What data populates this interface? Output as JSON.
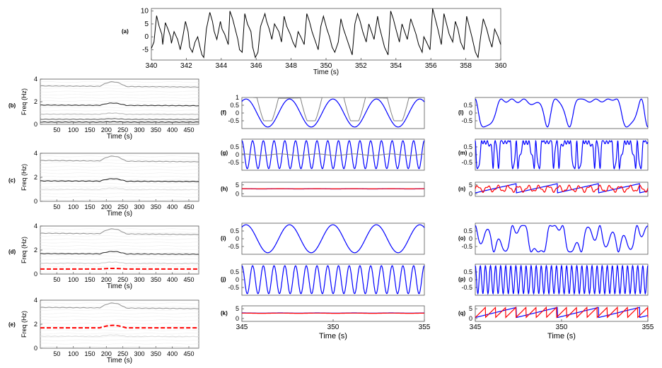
{
  "chart_data": [
    {
      "id": "a",
      "type": "line",
      "label": "(a)",
      "xlabel": "Time (s)",
      "ylabel": "",
      "xlim": [
        340,
        360
      ],
      "ylim": [
        -9,
        11
      ],
      "xticks": [
        340,
        342,
        344,
        346,
        348,
        350,
        352,
        354,
        356,
        358,
        360
      ],
      "yticks": [
        -5,
        0,
        5,
        10
      ],
      "series": [
        {
          "color": "#000000",
          "x": [
            340,
            340.15,
            340.3,
            340.45,
            340.6,
            340.65,
            340.8,
            340.95,
            341.1,
            341.15,
            341.3,
            341.5,
            341.65,
            341.8,
            341.95,
            342.1,
            342.2,
            342.35,
            342.5,
            342.65,
            342.8,
            342.9,
            343,
            343.15,
            343.35,
            343.5,
            343.6,
            343.75,
            343.95,
            344.05,
            344.2,
            344.4,
            344.5,
            344.65,
            344.8,
            344.95,
            345.05,
            345.2,
            345.35,
            345.5,
            345.7,
            345.8,
            345.95,
            346.1,
            346.25,
            346.5,
            346.6,
            346.75,
            346.9,
            347.05,
            347.3,
            347.45,
            347.6,
            347.75,
            347.95,
            348.1,
            348.25,
            348.4,
            348.55,
            348.75,
            348.9,
            349.05,
            349.2,
            349.4,
            349.55,
            349.7,
            349.85,
            350.05,
            350.2,
            350.35,
            350.5,
            350.7,
            350.85,
            351,
            351.15,
            351.35,
            351.5,
            351.65,
            351.8,
            351.95,
            352.1,
            352.3,
            352.45,
            352.6,
            352.75,
            352.95,
            353.05,
            353.2,
            353.35,
            353.55,
            353.7,
            353.85,
            354,
            354.2,
            354.35,
            354.5,
            354.65,
            354.85,
            355,
            355.15,
            355.3,
            355.5,
            355.6,
            355.75,
            355.95,
            356.1,
            356.25,
            356.4,
            356.6,
            356.75,
            356.9,
            357.05,
            357.25,
            357.4,
            357.55,
            357.7,
            357.9,
            358.05,
            358.2,
            358.35,
            358.55,
            358.7,
            358.85,
            359,
            359.2,
            359.35,
            359.5,
            359.65,
            359.85,
            360
          ],
          "y": [
            -4.5,
            -2,
            8.2,
            4,
            1,
            -3,
            5.5,
            3,
            0,
            -2.5,
            2,
            -1,
            -5,
            0,
            6,
            2,
            -4,
            -6,
            -2,
            0,
            -4.5,
            -7,
            -8,
            3,
            9.5,
            6,
            2,
            -1,
            6,
            3,
            1,
            -3,
            10,
            7,
            3,
            -1,
            -5,
            -6,
            9,
            5,
            2,
            -4,
            -8,
            -6,
            4,
            9,
            6,
            3,
            -1,
            5,
            2,
            -2,
            8,
            4,
            1,
            -2,
            -4,
            2,
            0,
            -3,
            9,
            6,
            2,
            -2,
            -5,
            4,
            8,
            3,
            0,
            -4,
            -6,
            -2,
            7,
            3,
            0,
            -4,
            -7,
            5,
            9,
            6,
            2,
            -2,
            5,
            2,
            -1,
            8,
            4,
            0,
            -4,
            -7,
            10,
            7,
            3,
            -2,
            5,
            2,
            -1,
            7,
            4,
            1,
            -3,
            -6,
            0,
            -2,
            -5,
            11,
            7,
            3,
            -3,
            9,
            5,
            1,
            -2,
            6,
            3,
            -2,
            -5,
            8,
            4,
            0,
            -6,
            -8,
            0,
            7,
            3,
            -1,
            -4,
            3,
            0,
            -3
          ]
        }
      ]
    },
    {
      "id": "b",
      "type": "heatmap",
      "label": "(b)",
      "ylabel": "Freq (Hz)",
      "xlabel": "Time (s)",
      "xlim": [
        0,
        480
      ],
      "ylim": [
        0,
        4
      ],
      "xticks": [
        50,
        100,
        150,
        200,
        250,
        300,
        350,
        400,
        450
      ],
      "yticks": [
        0,
        2,
        4
      ],
      "ridges": [
        {
          "freq": 3.4,
          "shade": "#999999"
        },
        {
          "freq": 1.7,
          "shade": "#333333"
        },
        {
          "freq": 0.9,
          "shade": "#bbbbbb"
        },
        {
          "freq": 0.45,
          "shade": "#666666"
        },
        {
          "freq": 0.2,
          "shade": "#222222"
        }
      ],
      "overlay": null
    },
    {
      "id": "c",
      "type": "heatmap",
      "label": "(c)",
      "ylabel": "Freq (Hz)",
      "xlabel": "Time (s)",
      "xlim": [
        0,
        480
      ],
      "ylim": [
        0,
        4
      ],
      "xticks": [
        50,
        100,
        150,
        200,
        250,
        300,
        350,
        400,
        450
      ],
      "yticks": [
        0,
        2,
        4
      ],
      "ridges": [
        {
          "freq": 3.4,
          "shade": "#999999"
        },
        {
          "freq": 1.7,
          "shade": "#222222"
        },
        {
          "freq": 1.0,
          "shade": "#dddddd"
        }
      ],
      "overlay": null
    },
    {
      "id": "d",
      "type": "heatmap",
      "label": "(d)",
      "ylabel": "Freq (Hz)",
      "xlabel": "Time (s)",
      "xlim": [
        0,
        480
      ],
      "ylim": [
        0,
        4
      ],
      "xticks": [
        50,
        100,
        150,
        200,
        250,
        300,
        350,
        400,
        450
      ],
      "yticks": [
        0,
        2,
        4
      ],
      "ridges": [
        {
          "freq": 3.4,
          "shade": "#999999"
        },
        {
          "freq": 1.7,
          "shade": "#333333"
        },
        {
          "freq": 0.9,
          "shade": "#cccccc"
        }
      ],
      "overlay": {
        "freq": 0.42,
        "color": "#ff0000"
      }
    },
    {
      "id": "e",
      "type": "heatmap",
      "label": "(e)",
      "ylabel": "Freq (Hz)",
      "xlabel": "Time (s)",
      "xlim": [
        0,
        480
      ],
      "ylim": [
        0,
        4
      ],
      "xticks": [
        50,
        100,
        150,
        200,
        250,
        300,
        350,
        400,
        450
      ],
      "yticks": [
        0,
        2,
        4
      ],
      "ridges": [
        {
          "freq": 3.4,
          "shade": "#999999"
        },
        {
          "freq": 1.0,
          "shade": "#dddddd"
        }
      ],
      "overlay": {
        "freq": 1.7,
        "color": "#ff0000"
      }
    },
    {
      "id": "f",
      "type": "line",
      "label": "(f)",
      "xlim": [
        345,
        355
      ],
      "ylim": [
        -1,
        1
      ],
      "yticks": [
        -0.5,
        0,
        0.5,
        1
      ],
      "series": [
        {
          "name": "",
          "color": "#0000ff",
          "kind": "cos",
          "freq": 0.42,
          "phase": -0.6
        },
        {
          "name": "",
          "color": "#808080",
          "kind": "amplitude",
          "freq": 0.42,
          "phase": -0.6
        }
      ]
    },
    {
      "id": "g",
      "type": "line",
      "label": "(g)",
      "xlim": [
        345,
        355
      ],
      "ylim": [
        -1,
        1
      ],
      "yticks": [
        -0.5,
        0,
        0.5
      ],
      "series": [
        {
          "name": "",
          "color": "#0000ff",
          "kind": "cos",
          "freq": 1.7,
          "phase": 0
        },
        {
          "name": "",
          "color": "#808080",
          "kind": "flat",
          "value": 0
        }
      ]
    },
    {
      "id": "h",
      "type": "line",
      "label": "(h)",
      "xlim": [
        345,
        355
      ],
      "ylim": [
        -1.5,
        6.5
      ],
      "yticks": [
        0,
        5
      ],
      "series": [
        {
          "name": "",
          "color": "#0000ff",
          "kind": "flat",
          "value": 2.75
        },
        {
          "name": "",
          "color": "#ff0000",
          "kind": "flat",
          "value": 2.8
        }
      ]
    },
    {
      "id": "i",
      "type": "line",
      "label": "(i)",
      "xlim": [
        345,
        355
      ],
      "ylim": [
        -1,
        1
      ],
      "yticks": [
        -0.5,
        0,
        0.5
      ],
      "series": [
        {
          "name": "",
          "color": "#0000ff",
          "kind": "cos",
          "freq": 0.42,
          "phase": -0.6
        }
      ]
    },
    {
      "id": "j",
      "type": "line",
      "label": "(j)",
      "xlim": [
        345,
        355
      ],
      "ylim": [
        -1,
        1
      ],
      "yticks": [
        -0.5,
        0,
        0.5
      ],
      "series": [
        {
          "name": "",
          "color": "#0000ff",
          "kind": "cos",
          "freq": 1.7,
          "phase": 0
        }
      ]
    },
    {
      "id": "k",
      "type": "line",
      "label": "(k)",
      "xlim": [
        345,
        355
      ],
      "ylim": [
        -1.5,
        6.5
      ],
      "yticks": [
        0,
        5
      ],
      "xticks": [
        345,
        350,
        355
      ],
      "xlabel": "Time (s)",
      "series": [
        {
          "name": "",
          "color": "#0000ff",
          "kind": "flat",
          "value": 2.8
        },
        {
          "name": "",
          "color": "#ff0000",
          "kind": "flat",
          "value": 2.7
        }
      ]
    },
    {
      "id": "l",
      "type": "line",
      "label": "(l)",
      "xlim": [
        345,
        355
      ],
      "ylim": [
        -1,
        1
      ],
      "yticks": [
        -0.5,
        0,
        0.5
      ],
      "series": [
        {
          "name": "",
          "color": "#0000ff",
          "kind": "irregular",
          "freq": 0.42
        }
      ]
    },
    {
      "id": "m",
      "type": "line",
      "label": "(m)",
      "xlim": [
        345,
        355
      ],
      "ylim": [
        -1,
        1
      ],
      "yticks": [
        -0.5,
        0,
        0.5
      ],
      "series": [
        {
          "name": "",
          "color": "#0000ff",
          "kind": "irregular",
          "freq": 1.7
        }
      ]
    },
    {
      "id": "n",
      "type": "line",
      "label": "(n)",
      "xlim": [
        345,
        355
      ],
      "ylim": [
        -1.5,
        6.5
      ],
      "yticks": [
        0,
        5
      ],
      "series": [
        {
          "name": "",
          "color": "#0000ff",
          "kind": "sawtooth",
          "freq": 0.42
        },
        {
          "name": "",
          "color": "#ff0000",
          "kind": "wobble",
          "freq": 1.7
        }
      ]
    },
    {
      "id": "o",
      "type": "line",
      "label": "(o)",
      "xlim": [
        345,
        355
      ],
      "ylim": [
        -1,
        1
      ],
      "yticks": [
        -0.5,
        0,
        0.5
      ],
      "series": [
        {
          "name": "",
          "color": "#0000ff",
          "kind": "irregular2",
          "freq": 0.42
        }
      ]
    },
    {
      "id": "p",
      "type": "line",
      "label": "(p)",
      "xlim": [
        345,
        355
      ],
      "ylim": [
        -1,
        1
      ],
      "yticks": [
        -0.5,
        0,
        0.5
      ],
      "series": [
        {
          "name": "",
          "color": "#0000ff",
          "kind": "cos",
          "freq": 3.4,
          "phase": 0
        }
      ]
    },
    {
      "id": "q",
      "type": "line",
      "label": "(q)",
      "xlim": [
        345,
        355
      ],
      "ylim": [
        -1.5,
        6.5
      ],
      "yticks": [
        0,
        5
      ],
      "xticks": [
        345,
        350,
        355
      ],
      "xlabel": "Time (s)",
      "series": [
        {
          "name": "",
          "color": "#0000ff",
          "kind": "sawtooth",
          "freq": 0.42
        },
        {
          "name": "",
          "color": "#ff0000",
          "kind": "sawtooth",
          "freq": 1.7
        }
      ]
    }
  ]
}
